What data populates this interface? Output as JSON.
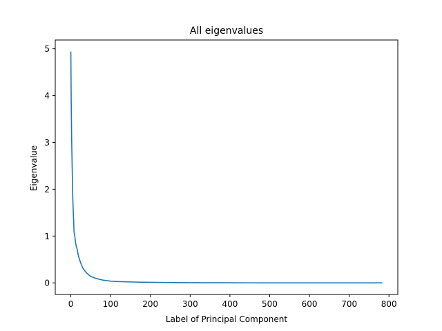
{
  "chart_data": {
    "type": "line",
    "title": "All eigenvalues",
    "xlabel": "Label of Principal Component",
    "ylabel": "Eigenvalue",
    "xlim": [
      -39.15,
      822.15
    ],
    "ylim": [
      -0.247,
      5.187
    ],
    "xticks": [
      0,
      100,
      200,
      300,
      400,
      500,
      600,
      700,
      800
    ],
    "yticks": [
      0,
      1,
      2,
      3,
      4,
      5
    ],
    "grid": false,
    "series": [
      {
        "color": "#1f77b4",
        "x": [
          0,
          1,
          2,
          3,
          4,
          5,
          6,
          7,
          8,
          9,
          10,
          12,
          14,
          16,
          18,
          20,
          25,
          30,
          35,
          40,
          45,
          50,
          60,
          70,
          80,
          90,
          100,
          120,
          140,
          160,
          180,
          200,
          250,
          300,
          350,
          400,
          450,
          500,
          550,
          600,
          650,
          700,
          750,
          783
        ],
        "y": [
          4.94,
          3.85,
          3.12,
          2.65,
          2.2,
          1.8,
          1.55,
          1.35,
          1.1,
          1.05,
          1.0,
          0.85,
          0.77,
          0.72,
          0.62,
          0.55,
          0.42,
          0.32,
          0.26,
          0.21,
          0.17,
          0.14,
          0.105,
          0.08,
          0.06,
          0.048,
          0.038,
          0.028,
          0.022,
          0.018,
          0.014,
          0.011,
          0.007,
          0.004,
          0.003,
          0.002,
          0.0015,
          0.001,
          0.0008,
          0.0006,
          0.0004,
          0.0003,
          0.0002,
          0.0001
        ]
      }
    ]
  }
}
